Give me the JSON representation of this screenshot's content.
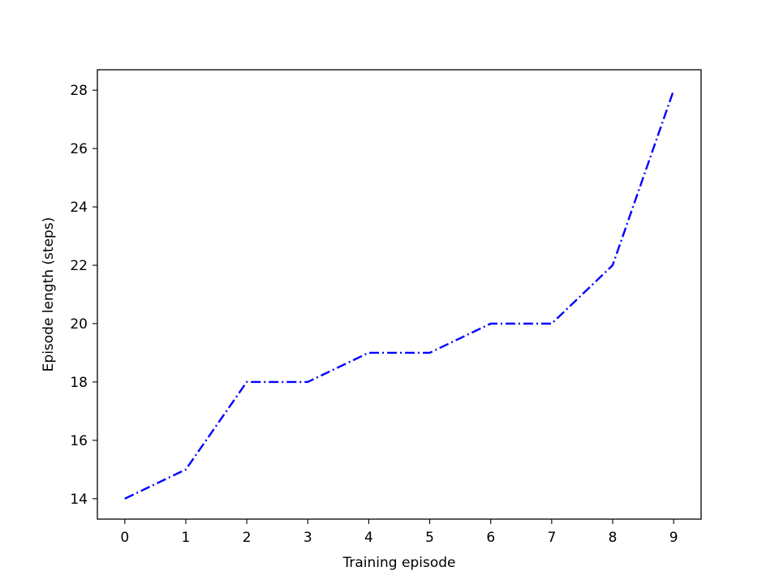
{
  "chart_data": {
    "type": "line",
    "title": "",
    "xlabel": "Training episode",
    "ylabel": "Episode length (steps)",
    "xlim": [
      -0.45,
      9.45
    ],
    "ylim": [
      13.3,
      28.7
    ],
    "x_ticks": [
      0,
      1,
      2,
      3,
      4,
      5,
      6,
      7,
      8,
      9
    ],
    "y_ticks": [
      14,
      16,
      18,
      20,
      22,
      24,
      26,
      28
    ],
    "grid": false,
    "legend": "none",
    "series": [
      {
        "x": [
          0,
          1,
          2,
          3,
          4,
          5,
          6,
          7,
          8,
          9
        ],
        "y": [
          14,
          15,
          18,
          18,
          19,
          19,
          20,
          20,
          22,
          28
        ],
        "color": "#0000ff",
        "line_style": "dash-dot"
      }
    ]
  }
}
